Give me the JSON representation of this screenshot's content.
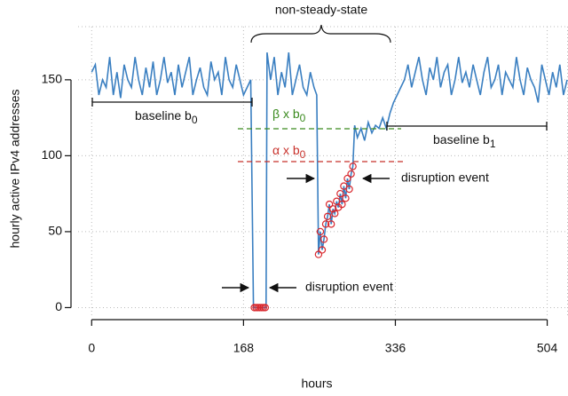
{
  "chart_data": {
    "type": "line",
    "annotations": {
      "top_brace": "non-steady-state",
      "baseline_b0": {
        "text": "baseline b",
        "sub": "0"
      },
      "baseline_b1": {
        "text": "baseline b",
        "sub": "1"
      },
      "beta": {
        "text": "β x b",
        "sub": "0"
      },
      "alpha": {
        "text": "α x b",
        "sub": "0"
      },
      "event_1": "disruption event",
      "event_2": "disruption event"
    },
    "xlabel": "hours",
    "ylabel": "hourly active IPv4 addresses",
    "xlim": [
      -15,
      527
    ],
    "ylim": [
      -5,
      185
    ],
    "xticks": [
      0,
      168,
      336,
      504
    ],
    "yticks": [
      0,
      50,
      100,
      150
    ],
    "grid": true,
    "series": [
      {
        "color": "#3a7fc1",
        "x": [
          0,
          4,
          8,
          12,
          16,
          20,
          24,
          28,
          32,
          36,
          40,
          44,
          48,
          52,
          56,
          60,
          64,
          68,
          72,
          76,
          80,
          84,
          88,
          92,
          96,
          100,
          104,
          108,
          112,
          116,
          120,
          124,
          128,
          132,
          136,
          140,
          144,
          148,
          152,
          156,
          160,
          164,
          168,
          172,
          176,
          179,
          182,
          186,
          190,
          193,
          194,
          198,
          202,
          206,
          210,
          214,
          218,
          222,
          226,
          230,
          234,
          238,
          242,
          246,
          249,
          251,
          253,
          255,
          257,
          259,
          261,
          263,
          265,
          267,
          269,
          271,
          273,
          275,
          277,
          279,
          281,
          283,
          285,
          287,
          289,
          291,
          294,
          298,
          302,
          306,
          310,
          314,
          318,
          322,
          326,
          330,
          334,
          338,
          342,
          346,
          350,
          354,
          358,
          362,
          366,
          370,
          374,
          378,
          382,
          386,
          390,
          394,
          398,
          402,
          406,
          410,
          414,
          418,
          422,
          426,
          430,
          434,
          438,
          442,
          446,
          450,
          454,
          458,
          462,
          466,
          470,
          474,
          478,
          482,
          486,
          490,
          494,
          498,
          502,
          506,
          510,
          514,
          518,
          522,
          526
        ],
        "values": [
          155,
          160,
          140,
          150,
          145,
          165,
          140,
          155,
          138,
          160,
          150,
          145,
          165,
          150,
          140,
          158,
          145,
          162,
          140,
          150,
          165,
          148,
          155,
          140,
          160,
          145,
          155,
          165,
          140,
          150,
          158,
          145,
          140,
          162,
          150,
          155,
          140,
          165,
          150,
          145,
          160,
          150,
          140,
          145,
          150,
          0,
          0,
          0,
          0,
          0,
          168,
          150,
          165,
          140,
          155,
          145,
          168,
          140,
          150,
          160,
          145,
          140,
          155,
          145,
          140,
          35,
          50,
          38,
          45,
          55,
          60,
          68,
          55,
          65,
          62,
          70,
          66,
          75,
          68,
          80,
          72,
          85,
          78,
          88,
          93,
          120,
          112,
          118,
          110,
          122,
          115,
          120,
          118,
          125,
          118,
          128,
          135,
          140,
          145,
          150,
          160,
          145,
          155,
          165,
          150,
          140,
          158,
          150,
          165,
          145,
          155,
          160,
          140,
          150,
          165,
          148,
          155,
          145,
          160,
          150,
          140,
          155,
          165,
          145,
          150,
          160,
          140,
          155,
          150,
          145,
          165,
          150,
          140,
          158,
          150,
          145,
          135,
          160,
          150,
          140,
          155,
          145,
          160,
          140,
          150
        ]
      },
      {
        "type": "scatter",
        "color": "#d9262c",
        "x": [
          180,
          182,
          184,
          186,
          188,
          190,
          192,
          251,
          253,
          255,
          257,
          259,
          261,
          263,
          265,
          267,
          269,
          271,
          273,
          275,
          277,
          279,
          281,
          283,
          285,
          287,
          289
        ],
        "values": [
          0,
          0,
          0,
          0,
          0,
          0,
          0,
          35,
          50,
          38,
          45,
          55,
          60,
          68,
          55,
          65,
          62,
          70,
          66,
          75,
          68,
          80,
          72,
          85,
          78,
          88,
          93
        ]
      }
    ]
  }
}
